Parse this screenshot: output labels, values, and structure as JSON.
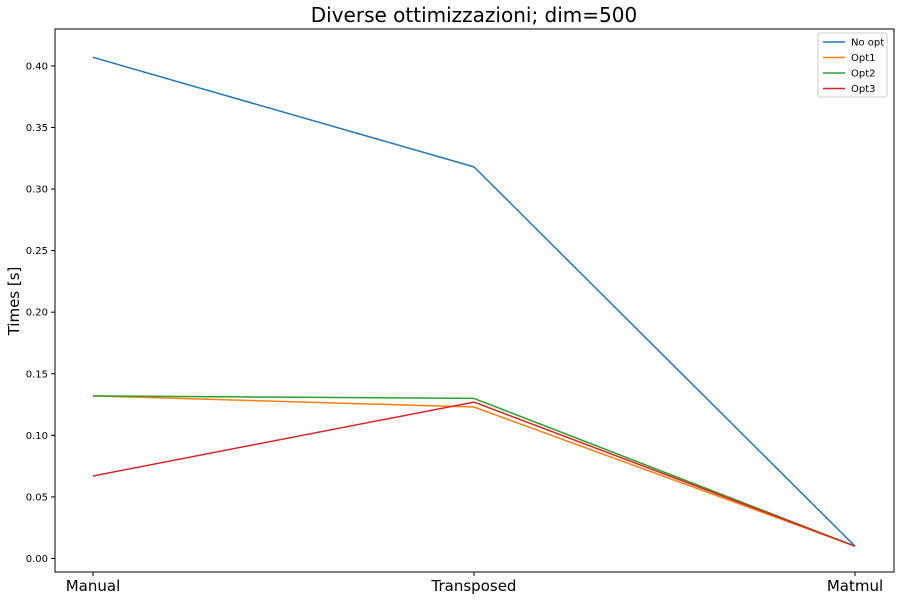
{
  "chart_data": {
    "type": "line",
    "title": "Diverse ottimizzazioni; dim=500",
    "xlabel": "",
    "ylabel": "Times [s]",
    "categories": [
      "Manual",
      "Transposed",
      "Matmul"
    ],
    "ylim": [
      -0.011,
      0.43
    ],
    "yticks": [
      "0.00",
      "0.05",
      "0.10",
      "0.15",
      "0.20",
      "0.25",
      "0.30",
      "0.35",
      "0.40"
    ],
    "grid": false,
    "legend_position": "top-right",
    "series": [
      {
        "name": "No opt",
        "color": "#1f77b4",
        "values": [
          0.407,
          0.318,
          0.01
        ]
      },
      {
        "name": "Opt1",
        "color": "#ff7f0e",
        "values": [
          0.132,
          0.123,
          0.01
        ]
      },
      {
        "name": "Opt2",
        "color": "#2ca02c",
        "values": [
          0.132,
          0.13,
          0.01
        ]
      },
      {
        "name": "Opt3",
        "color": "#d62728",
        "values": [
          0.067,
          0.127,
          0.01
        ]
      }
    ]
  }
}
